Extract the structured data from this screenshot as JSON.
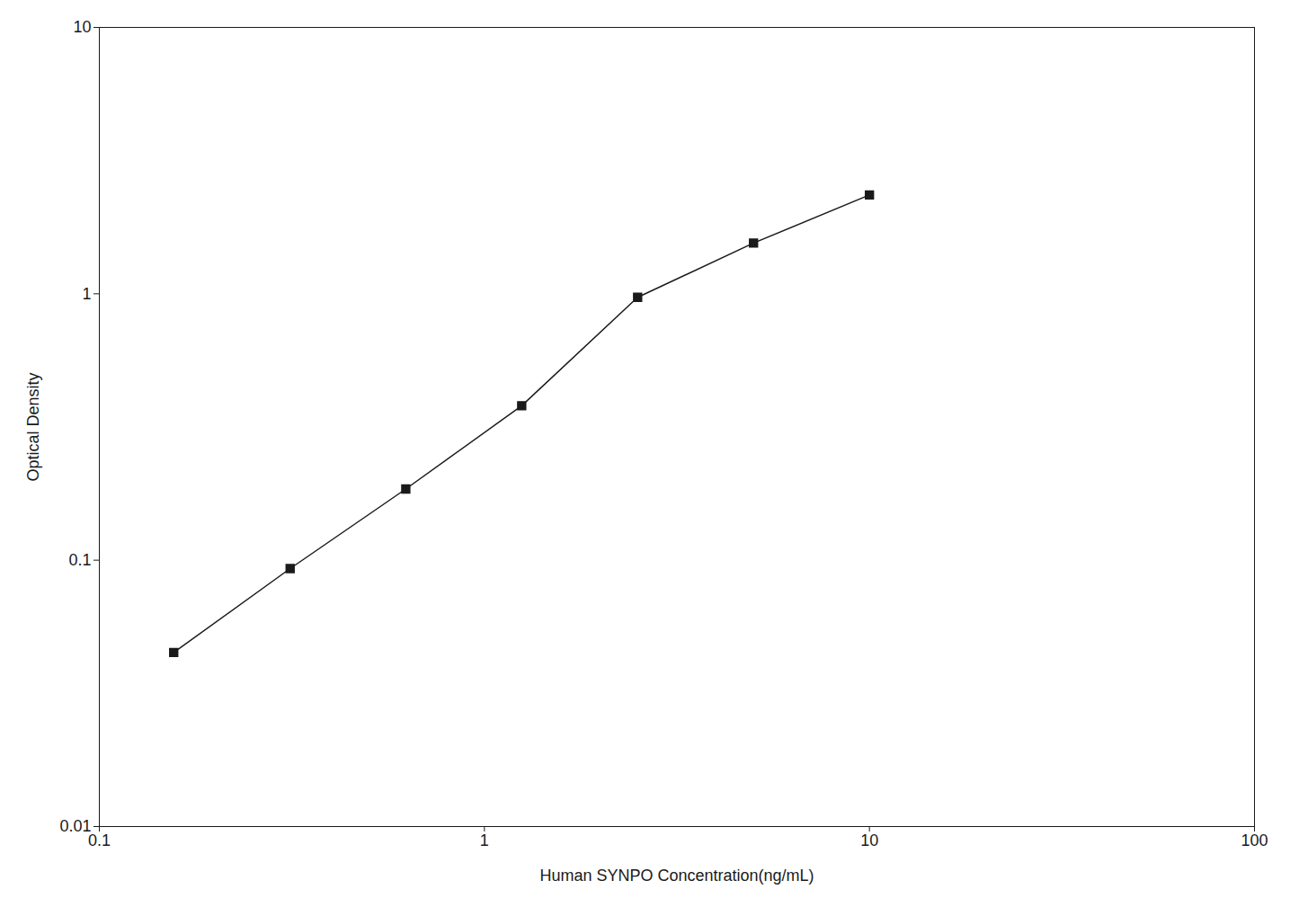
{
  "chart_data": {
    "type": "line",
    "x": [
      0.156,
      0.313,
      0.625,
      1.25,
      2.5,
      5.0,
      10.0
    ],
    "values": [
      0.045,
      0.093,
      0.185,
      0.38,
      0.97,
      1.55,
      2.35
    ],
    "xlabel": "Human SYNPO Concentration(ng/mL)",
    "ylabel": "Optical Density",
    "xlim": [
      0.1,
      100
    ],
    "ylim": [
      0.01,
      10
    ],
    "xticks": [
      0.1,
      1,
      10,
      100
    ],
    "yticks": [
      0.01,
      0.1,
      1,
      10
    ],
    "log": true,
    "grid": false,
    "color": "#1a1a1a",
    "marker": "square"
  }
}
